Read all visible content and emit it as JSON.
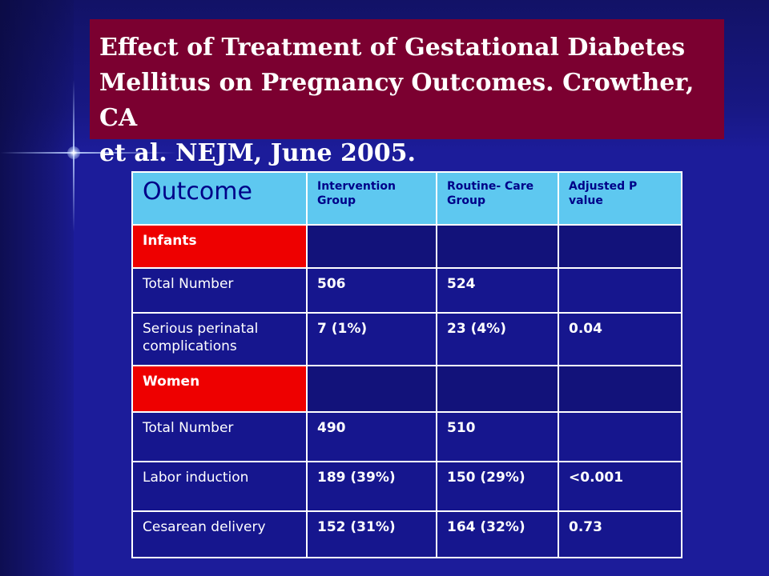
{
  "title": "Effect of Treatment of Gestational Diabetes Mellitus on Pregnancy Outcomes. Crowther, CA et al. NEJM, June 2005.",
  "title_lines": [
    "Effect of Treatment of Gestational Diabetes",
    "Mellitus on Pregnancy Outcomes. Crowther, CA",
    "et al. NEJM, June 2005."
  ],
  "table": {
    "headers": [
      "Outcome",
      "Intervention Group",
      "Routine- Care Group",
      "Adjusted P value"
    ],
    "rows": [
      {
        "type": "section",
        "cells": [
          "Infants",
          "",
          "",
          ""
        ]
      },
      {
        "type": "data",
        "cells": [
          "Total Number",
          "506",
          "524",
          ""
        ]
      },
      {
        "type": "data",
        "cells": [
          "Serious perinatal complications",
          "7 (1%)",
          "23 (4%)",
          "0.04"
        ]
      },
      {
        "type": "section",
        "cells": [
          "Women",
          "",
          "",
          ""
        ]
      },
      {
        "type": "data",
        "cells": [
          "Total Number",
          "490",
          "510",
          ""
        ]
      },
      {
        "type": "data",
        "cells": [
          "Labor induction",
          "189 (39%)",
          "150 (29%)",
          "<0.001"
        ]
      },
      {
        "type": "data",
        "cells": [
          "Cesarean delivery",
          "152 (31%)",
          "164 (32%)",
          "0.73"
        ]
      }
    ]
  },
  "colors": {
    "background": "#1c1c9a",
    "title_box": "#7b0030",
    "header_fill": "#5ec8f0",
    "header_text": "#000088",
    "section_fill": "#ee0000"
  }
}
